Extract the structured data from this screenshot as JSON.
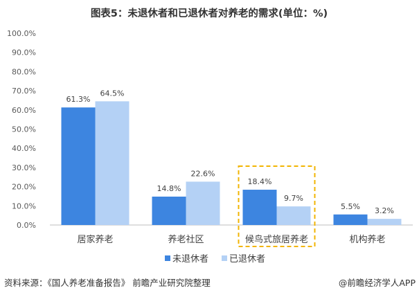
{
  "chart_data": {
    "type": "bar",
    "title": "图表5：未退休者和已退休者对养老的需求(单位：%)",
    "categories": [
      "居家养老",
      "养老社区",
      "候鸟式旅居养老",
      "机构养老"
    ],
    "series": [
      {
        "name": "未退休者",
        "values": [
          61.3,
          14.8,
          18.4,
          5.5
        ],
        "labels": [
          "61.3%",
          "14.8%",
          "18.4%",
          "5.5%"
        ],
        "color": "#3d85e0"
      },
      {
        "name": "已退休者",
        "values": [
          64.5,
          22.6,
          9.7,
          3.2
        ],
        "labels": [
          "64.5%",
          "22.6%",
          "9.7%",
          "3.2%"
        ],
        "color": "#b4d1f5"
      }
    ],
    "yticks": [
      "0.0%",
      "10.0%",
      "20.0%",
      "30.0%",
      "40.0%",
      "50.0%",
      "60.0%",
      "70.0%",
      "80.0%",
      "90.0%",
      "100.0%"
    ],
    "ylim": [
      0,
      100
    ],
    "highlight_category": "候鸟式旅居养老",
    "highlight_color": "#f2b400",
    "legend_position": "bottom",
    "grid": false
  },
  "footer": {
    "source": "资料来源：《国人养老准备报告》 前瞻产业研究院整理",
    "credit": "@前瞻经济学人APP"
  }
}
